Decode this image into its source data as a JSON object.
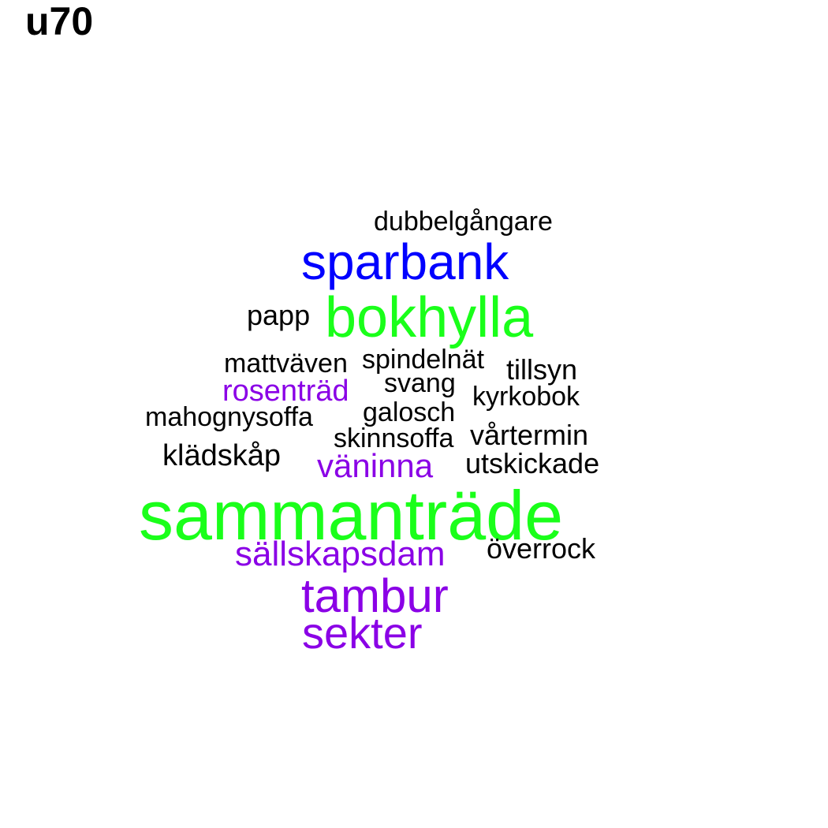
{
  "title": "u70",
  "colors": {
    "large": "#1aff1a",
    "mid": "#0000ff",
    "purple": "#8a00e6",
    "small": "#000000"
  },
  "words": [
    {
      "text": "dubbelgångare",
      "color": "#000000"
    },
    {
      "text": "sparbank",
      "color": "#0000ff"
    },
    {
      "text": "bokhylla",
      "color": "#1aff1a"
    },
    {
      "text": "papp",
      "color": "#000000"
    },
    {
      "text": "mattväven",
      "color": "#000000"
    },
    {
      "text": "spindelnät",
      "color": "#000000"
    },
    {
      "text": "tillsyn",
      "color": "#000000"
    },
    {
      "text": "rosenträd",
      "color": "#8a00e6"
    },
    {
      "text": "svang",
      "color": "#000000"
    },
    {
      "text": "kyrkobok",
      "color": "#000000"
    },
    {
      "text": "mahognysoffa",
      "color": "#000000"
    },
    {
      "text": "galosch",
      "color": "#000000"
    },
    {
      "text": "skinnsoffa",
      "color": "#000000"
    },
    {
      "text": "vårtermin",
      "color": "#000000"
    },
    {
      "text": "klädskåp",
      "color": "#000000"
    },
    {
      "text": "väninna",
      "color": "#8a00e6"
    },
    {
      "text": "utskickade",
      "color": "#000000"
    },
    {
      "text": "sammanträde",
      "color": "#1aff1a"
    },
    {
      "text": "sällskapsdam",
      "color": "#8a00e6"
    },
    {
      "text": "överrock",
      "color": "#000000"
    },
    {
      "text": "tambur",
      "color": "#8a00e6"
    },
    {
      "text": "sekter",
      "color": "#8a00e6"
    }
  ]
}
